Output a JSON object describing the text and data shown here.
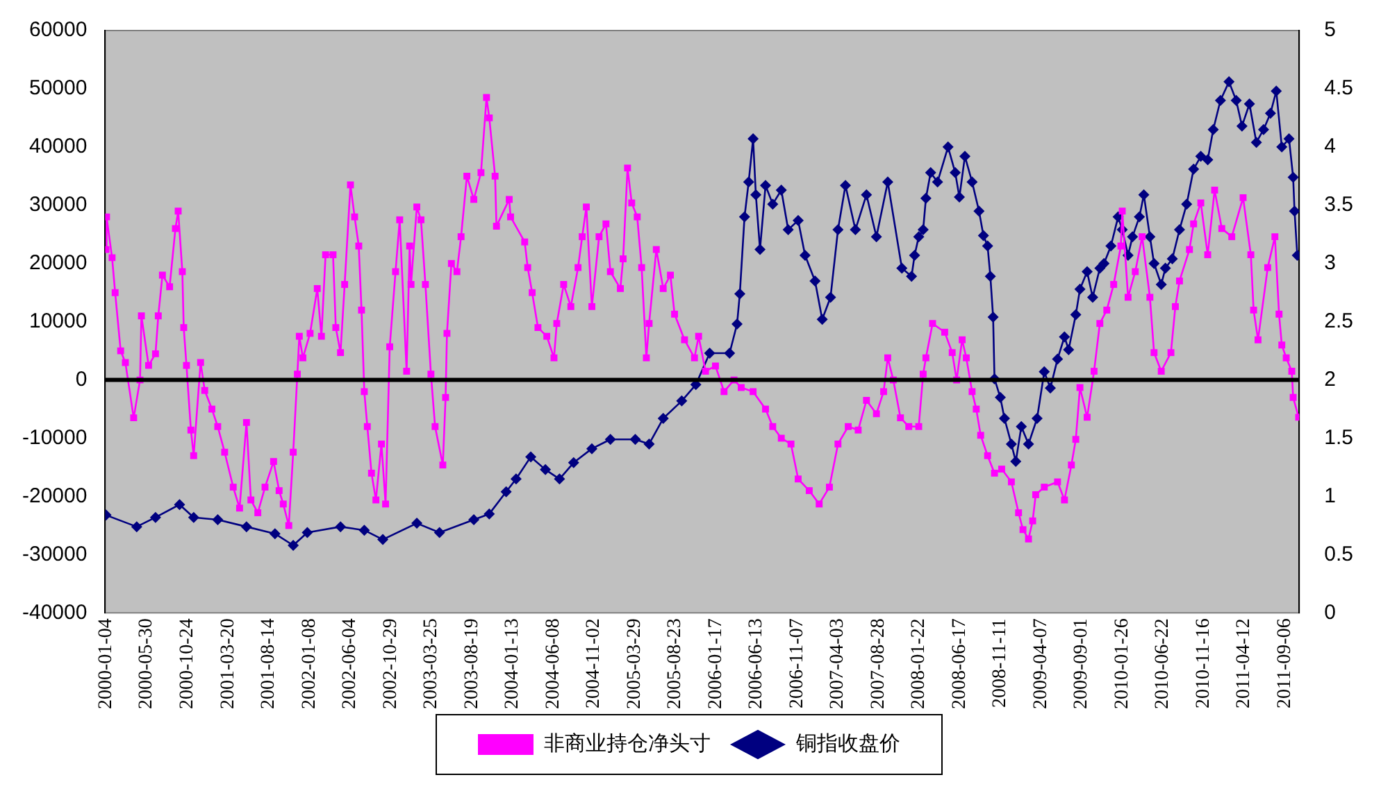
{
  "chart_data": {
    "type": "line",
    "xlim": [
      "2000-01-01",
      "2011-10-28"
    ],
    "xticks": [
      "2000-01-04",
      "2000-05-30",
      "2000-10-24",
      "2001-03-20",
      "2001-08-14",
      "2002-01-08",
      "2002-06-04",
      "2002-10-29",
      "2003-03-25",
      "2003-08-19",
      "2004-01-13",
      "2004-06-08",
      "2004-11-02",
      "2005-03-29",
      "2005-08-23",
      "2006-01-17",
      "2006-06-13",
      "2006-11-07",
      "2007-04-03",
      "2007-08-28",
      "2008-01-22",
      "2008-06-17",
      "2008-11-11",
      "2009-04-07",
      "2009-09-01",
      "2010-01-26",
      "2010-06-22",
      "2010-11-16",
      "2011-04-12",
      "2011-09-06"
    ],
    "ylim": [
      -40000,
      60000
    ],
    "yticks": [
      -40000,
      -30000,
      -20000,
      -10000,
      0,
      10000,
      20000,
      30000,
      40000,
      50000,
      60000
    ],
    "y2lim": [
      0,
      5
    ],
    "y2ticks": [
      0,
      0.5,
      1,
      1.5,
      2,
      2.5,
      3,
      3.5,
      4,
      4.5,
      5
    ],
    "grid": false,
    "legend": "bottom",
    "ref_lines": [
      {
        "axis": "y",
        "value": 0,
        "color": "#000000"
      }
    ],
    "series": [
      {
        "name": "非商业持仓净头寸",
        "color": "#ff00ff",
        "marker": "square",
        "x": [
          "2000-01-04",
          "2000-01-06",
          "2000-01-26",
          "2000-02-06",
          "2000-02-26",
          "2000-03-14",
          "2000-04-13",
          "2000-05-06",
          "2000-05-11",
          "2000-06-06",
          "2000-07-01",
          "2000-07-11",
          "2000-07-26",
          "2000-08-21",
          "2000-09-11",
          "2000-09-21",
          "2000-10-06",
          "2000-10-11",
          "2000-10-21",
          "2000-11-06",
          "2000-11-16",
          "2000-12-11",
          "2000-12-26",
          "2001-01-21",
          "2001-02-11",
          "2001-03-08",
          "2001-04-08",
          "2001-05-01",
          "2001-05-26",
          "2001-06-11",
          "2001-07-06",
          "2001-08-01",
          "2001-09-01",
          "2001-09-21",
          "2001-10-06",
          "2001-10-26",
          "2001-11-11",
          "2001-11-26",
          "2001-12-03",
          "2001-12-16",
          "2002-01-11",
          "2002-02-06",
          "2002-02-21",
          "2002-03-08",
          "2002-04-04",
          "2002-04-14",
          "2002-05-01",
          "2002-05-16",
          "2002-06-06",
          "2002-06-21",
          "2002-07-06",
          "2002-07-16",
          "2002-07-26",
          "2002-08-06",
          "2002-08-21",
          "2002-09-06",
          "2002-09-26",
          "2002-10-11",
          "2002-10-26",
          "2002-11-16",
          "2002-12-01",
          "2002-12-26",
          "2003-01-06",
          "2003-01-11",
          "2003-02-01",
          "2003-02-16",
          "2003-03-04",
          "2003-03-24",
          "2003-04-08",
          "2003-05-06",
          "2003-05-16",
          "2003-05-21",
          "2003-06-06",
          "2003-06-26",
          "2003-07-11",
          "2003-08-01",
          "2003-08-26",
          "2003-09-21",
          "2003-10-11",
          "2003-10-21",
          "2003-11-11",
          "2003-11-16",
          "2004-01-01",
          "2004-01-06",
          "2004-02-26",
          "2004-03-08",
          "2004-03-24",
          "2004-04-14",
          "2004-05-16",
          "2004-06-11",
          "2004-06-21",
          "2004-07-16",
          "2004-08-11",
          "2004-09-06",
          "2004-09-21",
          "2004-10-06",
          "2004-10-26",
          "2004-11-21",
          "2004-12-16",
          "2005-01-01",
          "2005-02-06",
          "2005-02-16",
          "2005-03-04",
          "2005-03-19",
          "2005-04-08",
          "2005-04-24",
          "2005-05-11",
          "2005-05-21",
          "2005-06-16",
          "2005-07-11",
          "2005-08-06",
          "2005-08-21",
          "2005-09-26",
          "2005-11-01",
          "2005-11-16",
          "2005-12-11",
          "2006-01-16",
          "2006-02-16",
          "2006-03-24",
          "2006-04-19",
          "2006-06-01",
          "2006-07-16",
          "2006-08-11",
          "2006-09-11",
          "2006-10-16",
          "2006-11-11",
          "2006-12-21",
          "2007-01-26",
          "2007-03-04",
          "2007-04-04",
          "2007-05-11",
          "2007-06-16",
          "2007-07-16",
          "2007-08-21",
          "2007-09-16",
          "2007-10-01",
          "2007-10-21",
          "2007-11-16",
          "2007-12-16",
          "2008-01-21",
          "2008-02-06",
          "2008-02-16",
          "2008-03-11",
          "2008-04-24",
          "2008-05-21",
          "2008-06-06",
          "2008-06-26",
          "2008-07-11",
          "2008-08-01",
          "2008-08-16",
          "2008-09-01",
          "2008-09-26",
          "2008-10-21",
          "2008-11-16",
          "2008-12-21",
          "2009-01-16",
          "2009-02-01",
          "2009-02-21",
          "2009-03-08",
          "2009-03-19",
          "2009-04-19",
          "2009-06-06",
          "2009-07-01",
          "2009-07-26",
          "2009-08-11",
          "2009-08-26",
          "2009-09-21",
          "2009-10-16",
          "2009-11-06",
          "2009-12-01",
          "2009-12-26",
          "2010-01-21",
          "2010-01-26",
          "2010-02-16",
          "2010-03-14",
          "2010-04-08",
          "2010-05-06",
          "2010-05-21",
          "2010-06-16",
          "2010-07-21",
          "2010-08-06",
          "2010-08-21",
          "2010-09-26",
          "2010-10-11",
          "2010-11-06",
          "2010-12-01",
          "2010-12-26",
          "2011-01-21",
          "2011-02-26",
          "2011-04-08",
          "2011-05-06",
          "2011-05-16",
          "2011-06-01",
          "2011-07-06",
          "2011-08-01",
          "2011-08-16",
          "2011-08-26",
          "2011-09-11",
          "2011-10-01",
          "2011-10-06",
          "2011-10-26"
        ],
        "values": [
          22400,
          28000,
          21000,
          15000,
          5000,
          3000,
          -6500,
          0,
          11000,
          2500,
          4500,
          11000,
          18000,
          16000,
          26000,
          29000,
          18600,
          9000,
          2500,
          -8600,
          -13000,
          3000,
          -1800,
          -5000,
          -8000,
          -12400,
          -18400,
          -22000,
          -7300,
          -20600,
          -22800,
          -18400,
          -14000,
          -19000,
          -21300,
          -25000,
          -12400,
          1000,
          7500,
          3800,
          8000,
          15700,
          7500,
          21500,
          21500,
          9000,
          4700,
          16400,
          33500,
          28000,
          23000,
          12000,
          -2000,
          -8000,
          -16000,
          -20600,
          -11000,
          -21300,
          5700,
          18600,
          27500,
          1500,
          23000,
          16400,
          29700,
          27500,
          16400,
          1000,
          -8000,
          -14600,
          -3000,
          8000,
          20000,
          18600,
          24600,
          35000,
          31000,
          35600,
          48500,
          45000,
          35000,
          26400,
          31000,
          28000,
          23700,
          19300,
          15000,
          9000,
          7500,
          3800,
          9700,
          16400,
          12600,
          19300,
          24600,
          29700,
          12600,
          24600,
          26800,
          18600,
          15700,
          20800,
          36400,
          30400,
          28000,
          19300,
          3800,
          9700,
          22400,
          15700,
          18000,
          11300,
          6900,
          3800,
          7500,
          1500,
          2400,
          -2000,
          0,
          -1300,
          -2000,
          -5000,
          -8000,
          -10000,
          -11000,
          -17000,
          -19000,
          -21300,
          -18400,
          -11000,
          -8000,
          -8600,
          -3500,
          -5800,
          -2000,
          3800,
          0,
          -6500,
          -8000,
          -8000,
          1000,
          3800,
          9700,
          8200,
          4700,
          0,
          6900,
          3800,
          -2000,
          -5000,
          -9500,
          -13000,
          -16000,
          -15300,
          -17500,
          -22800,
          -25700,
          -27300,
          -24200,
          -19700,
          -18400,
          -17500,
          -20600,
          -14600,
          -10200,
          -1300,
          -6400,
          1500,
          9700,
          12000,
          16400,
          23000,
          29000,
          14200,
          18600,
          24600,
          14200,
          4700,
          1500,
          4700,
          12600,
          17000,
          22400,
          26800,
          30400,
          21500,
          32600,
          26000,
          24600,
          31300,
          21500,
          12000,
          6900,
          19300,
          24600,
          11300,
          6000,
          3800,
          1500,
          -3000,
          -6400
        ]
      },
      {
        "name": "铜指收盘价",
        "color": "#000080",
        "marker": "diamond",
        "axis": "y2",
        "x": [
          "2000-01-04",
          "2000-04-24",
          "2000-07-01",
          "2000-09-26",
          "2000-11-16",
          "2001-02-11",
          "2001-05-26",
          "2001-09-06",
          "2001-11-11",
          "2002-01-01",
          "2002-05-01",
          "2002-07-26",
          "2002-10-01",
          "2003-02-01",
          "2003-04-24",
          "2003-08-26",
          "2003-10-21",
          "2003-12-21",
          "2004-01-26",
          "2004-03-19",
          "2004-05-11",
          "2004-07-01",
          "2004-08-21",
          "2004-10-26",
          "2005-01-01",
          "2005-04-01",
          "2005-05-21",
          "2005-07-11",
          "2005-09-16",
          "2005-11-06",
          "2005-12-26",
          "2006-03-08",
          "2006-04-04",
          "2006-04-14",
          "2006-05-01",
          "2006-05-16",
          "2006-06-01",
          "2006-06-11",
          "2006-06-26",
          "2006-07-16",
          "2006-08-11",
          "2006-09-11",
          "2006-10-06",
          "2006-11-11",
          "2006-12-06",
          "2007-01-11",
          "2007-02-06",
          "2007-03-08",
          "2007-04-04",
          "2007-05-01",
          "2007-06-06",
          "2007-07-16",
          "2007-08-21",
          "2007-10-01",
          "2007-11-21",
          "2007-12-26",
          "2008-01-06",
          "2008-01-21",
          "2008-02-06",
          "2008-02-16",
          "2008-03-04",
          "2008-03-29",
          "2008-05-06",
          "2008-06-01",
          "2008-06-16",
          "2008-07-06",
          "2008-08-01",
          "2008-08-26",
          "2008-09-11",
          "2008-09-26",
          "2008-10-06",
          "2008-10-16",
          "2008-10-21",
          "2008-11-11",
          "2008-11-26",
          "2008-12-21",
          "2009-01-06",
          "2009-01-26",
          "2009-02-21",
          "2009-03-24",
          "2009-04-19",
          "2009-05-11",
          "2009-06-06",
          "2009-07-01",
          "2009-07-16",
          "2009-08-11",
          "2009-08-26",
          "2009-09-21",
          "2009-10-11",
          "2009-11-06",
          "2009-11-21",
          "2009-12-16",
          "2010-01-11",
          "2010-01-26",
          "2010-02-16",
          "2010-03-04",
          "2010-03-29",
          "2010-04-14",
          "2010-05-06",
          "2010-05-21",
          "2010-06-16",
          "2010-07-01",
          "2010-07-26",
          "2010-08-21",
          "2010-09-16",
          "2010-10-11",
          "2010-11-06",
          "2010-12-01",
          "2010-12-21",
          "2011-01-16",
          "2011-02-16",
          "2011-03-14",
          "2011-04-04",
          "2011-05-01",
          "2011-05-26",
          "2011-06-21",
          "2011-07-16",
          "2011-08-06",
          "2011-08-26",
          "2011-09-21",
          "2011-10-06",
          "2011-10-11",
          "2011-10-21"
        ],
        "values": [
          0.84,
          0.74,
          0.82,
          0.93,
          0.82,
          0.8,
          0.74,
          0.68,
          0.58,
          0.69,
          0.74,
          0.71,
          0.63,
          0.77,
          0.69,
          0.8,
          0.85,
          1.04,
          1.15,
          1.34,
          1.23,
          1.15,
          1.29,
          1.41,
          1.49,
          1.49,
          1.45,
          1.67,
          1.82,
          1.96,
          2.23,
          2.23,
          2.48,
          2.74,
          3.4,
          3.7,
          4.07,
          3.59,
          3.12,
          3.67,
          3.51,
          3.63,
          3.29,
          3.37,
          3.07,
          2.85,
          2.52,
          2.71,
          3.29,
          3.67,
          3.29,
          3.59,
          3.23,
          3.7,
          2.96,
          2.89,
          3.07,
          3.23,
          3.29,
          3.56,
          3.78,
          3.7,
          4.0,
          3.78,
          3.57,
          3.92,
          3.7,
          3.45,
          3.24,
          3.15,
          2.89,
          2.54,
          2.01,
          1.85,
          1.67,
          1.45,
          1.3,
          1.6,
          1.45,
          1.67,
          2.07,
          1.93,
          2.18,
          2.37,
          2.26,
          2.56,
          2.78,
          2.93,
          2.71,
          2.96,
          3.0,
          3.15,
          3.4,
          3.29,
          3.07,
          3.23,
          3.4,
          3.59,
          3.23,
          3.0,
          2.82,
          2.96,
          3.04,
          3.29,
          3.51,
          3.81,
          3.92,
          3.89,
          4.15,
          4.4,
          4.56,
          4.4,
          4.18,
          4.37,
          4.04,
          4.15,
          4.29,
          4.48,
          4.0,
          4.07,
          3.74,
          3.45,
          3.07
        ]
      }
    ]
  }
}
